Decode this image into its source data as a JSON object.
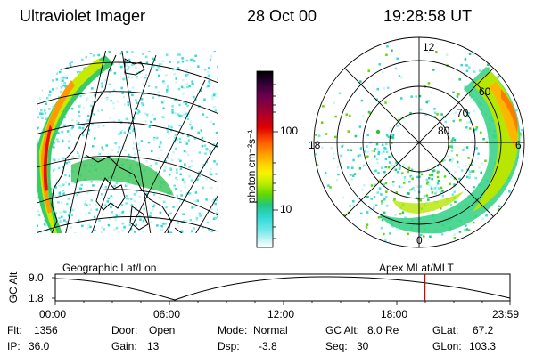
{
  "header": {
    "title": "Ultraviolet Imager",
    "date": "28 Oct 00",
    "time": "19:28:58 UT"
  },
  "colorbar": {
    "unit_label": "photon cm⁻²s⁻¹",
    "ticks": [
      "100",
      "10"
    ],
    "colors": [
      "#000000",
      "#2a0030",
      "#6a0050",
      "#a8002a",
      "#e00000",
      "#ff5a00",
      "#ff9d00",
      "#ffd200",
      "#f7f500",
      "#b8ec00",
      "#60d800",
      "#20c880",
      "#30d8d8",
      "#70e8e8",
      "#c8f4f4",
      "#ffffff"
    ]
  },
  "panels": {
    "left_label": "Geographic Lat/Lon",
    "right_label": "Apex  MLat/MLT",
    "polar_labels": {
      "top": "12",
      "left": "18",
      "right": "6",
      "bottom": "0",
      "lat60": "60",
      "lat70": "70",
      "lat80": "80"
    }
  },
  "altitude_strip": {
    "axis_label": "GC Alt",
    "y_ticks": [
      "9.0",
      "1.8"
    ],
    "x_ticks": [
      "00:00",
      "06:00",
      "12:00",
      "18:00",
      "23:59"
    ],
    "current_marker_fraction": 0.813,
    "marker_color": "#cc0000"
  },
  "footer": {
    "row1": [
      {
        "label": "Flt:",
        "value": "1356"
      },
      {
        "label": "Door:",
        "value": "Open"
      },
      {
        "label": "Mode:",
        "value": "Normal"
      },
      {
        "label": "GC Alt:",
        "value": "8.0 Re"
      },
      {
        "label": "GLat:",
        "value": "67.2"
      }
    ],
    "row2": [
      {
        "label": "IP:",
        "value": "36.0"
      },
      {
        "label": "Gain:",
        "value": "13"
      },
      {
        "label": "Dsp:",
        "value": "-3.8"
      },
      {
        "label": "Seq:",
        "value": "30"
      },
      {
        "label": "GLon:",
        "value": "103.3"
      }
    ]
  }
}
